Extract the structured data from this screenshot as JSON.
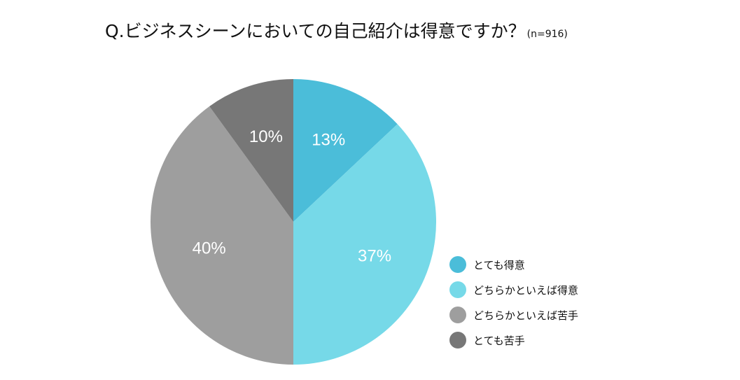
{
  "chart_data": {
    "type": "pie",
    "title": "Q.ビジネスシーンにおいての自己紹介は得意ですか？",
    "subtitle": "(n=916)",
    "categories": [
      "とても得意",
      "どちらかといえば得意",
      "どちらかといえば苦手",
      "とても苦手"
    ],
    "values": [
      13,
      37,
      40,
      10
    ],
    "labels": [
      "13%",
      "37%",
      "40%",
      "10%"
    ],
    "colors": [
      "#4bbdd9",
      "#76d9e8",
      "#9e9e9e",
      "#777777"
    ],
    "legend": "right"
  }
}
